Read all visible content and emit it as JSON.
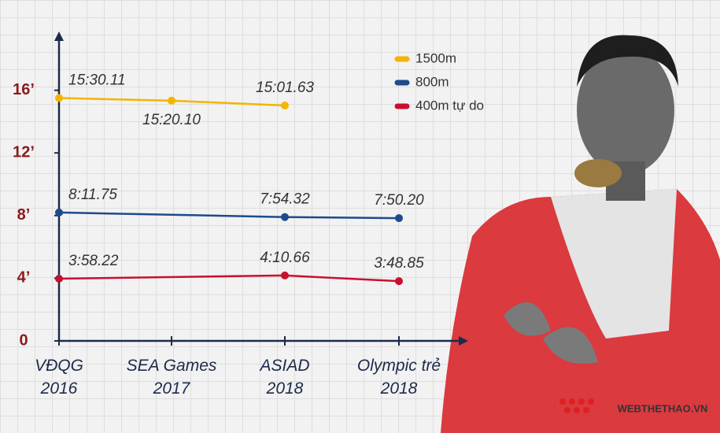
{
  "chart_data": {
    "type": "line",
    "categories": [
      "VĐQG\n2016",
      "SEA Games\n2017",
      "ASIAD\n2018",
      "Olympic trẻ\n2018"
    ],
    "series": [
      {
        "name": "1500m",
        "color": "#f5b400",
        "values": [
          15.50183,
          15.335,
          15.02717,
          null
        ],
        "value_labels": [
          "15:30.11",
          "15:20.10",
          "15:01.63",
          null
        ]
      },
      {
        "name": "800m",
        "color": "#1d4a8c",
        "values": [
          8.19583,
          null,
          7.90533,
          7.83667
        ],
        "value_labels": [
          "8:11.75",
          null,
          "7:54.32",
          "7:50.20"
        ]
      },
      {
        "name": "400m tự do",
        "color": "#c8102e",
        "values": [
          3.97033,
          null,
          4.17767,
          3.81417
        ],
        "value_labels": [
          "3:58.22",
          null,
          "4:10.66",
          "3:48.85"
        ]
      }
    ],
    "ylim": [
      0,
      19.5
    ],
    "yticks": [
      0,
      {
        "value": 4,
        "label": "4’"
      },
      {
        "value": 8,
        "label": "8’"
      },
      {
        "value": 12,
        "label": "12’"
      },
      {
        "value": 16,
        "label": "16’"
      }
    ],
    "legend": "top-right"
  },
  "logo": "WEBTHETHAO.VN"
}
